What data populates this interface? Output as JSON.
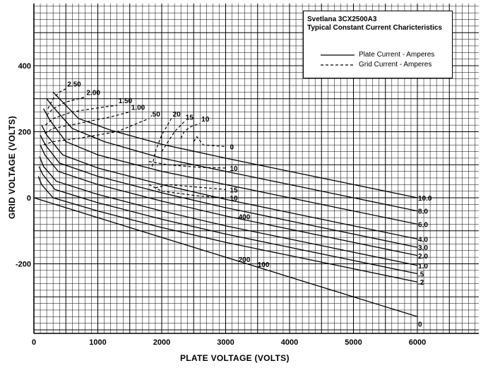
{
  "chart_data": {
    "type": "line",
    "title": "Svetlana 3CX2500A3",
    "subtitle": "Typical Constant Current Charicteristics",
    "xlabel": "PLATE VOLTAGE (VOLTS)",
    "ylabel": "GRID VOLTAGE (VOLTS)",
    "xlim": [
      0,
      7100
    ],
    "ylim": [
      -410,
      590
    ],
    "x_ticks": [
      "0",
      "1000",
      "2000",
      "3000",
      "4000",
      "5000",
      "6000"
    ],
    "y_ticks": [
      "400",
      "200",
      "0",
      "-200"
    ],
    "grid": true,
    "legend": {
      "position": "top-right",
      "entries": [
        {
          "label": "Plate Current - Amperes",
          "style": "solid"
        },
        {
          "label": "Grid Current - Amperes",
          "style": "dashed"
        }
      ]
    },
    "plate_current_series": [
      {
        "name": "10.0",
        "x": [
          300,
          400,
          700,
          1200,
          2000,
          3000,
          4000,
          5000,
          6000
        ],
        "y": [
          320,
          300,
          240,
          205,
          162,
          120,
          80,
          40,
          0
        ]
      },
      {
        "name": "8.0",
        "x": [
          200,
          300,
          600,
          1100,
          2000,
          3000,
          4000,
          5000,
          6000
        ],
        "y": [
          300,
          275,
          210,
          170,
          120,
          80,
          40,
          0,
          -40
        ]
      },
      {
        "name": "6.0",
        "x": [
          150,
          250,
          500,
          1000,
          2000,
          3000,
          4000,
          5000,
          6000
        ],
        "y": [
          270,
          235,
          170,
          130,
          80,
          40,
          0,
          -40,
          -80
        ]
      },
      {
        "name": "4.0",
        "x": [
          120,
          200,
          450,
          1000,
          2000,
          3000,
          4000,
          5000,
          6000
        ],
        "y": [
          220,
          190,
          130,
          90,
          40,
          -5,
          -45,
          -85,
          -125
        ]
      },
      {
        "name": "3.0",
        "x": [
          100,
          180,
          400,
          1000,
          2000,
          3000,
          4000,
          5000,
          6000
        ],
        "y": [
          190,
          160,
          105,
          65,
          15,
          -30,
          -70,
          -110,
          -150
        ]
      },
      {
        "name": "2.0",
        "x": [
          100,
          170,
          380,
          1000,
          2000,
          3000,
          4000,
          5000,
          6000
        ],
        "y": [
          160,
          130,
          80,
          40,
          -10,
          -55,
          -95,
          -135,
          -175
        ]
      },
      {
        "name": "1.0",
        "x": [
          90,
          150,
          350,
          1000,
          2000,
          3000,
          4000,
          5000,
          6000
        ],
        "y": [
          125,
          95,
          50,
          10,
          -40,
          -85,
          -125,
          -165,
          -205
        ]
      },
      {
        "name": ".5",
        "x": [
          80,
          140,
          330,
          1000,
          2000,
          3000,
          4000,
          5000,
          6000
        ],
        "y": [
          95,
          70,
          25,
          -15,
          -65,
          -110,
          -150,
          -190,
          -230
        ]
      },
      {
        "name": ".2",
        "x": [
          70,
          120,
          300,
          1000,
          2000,
          3000,
          4000,
          5000,
          6000
        ],
        "y": [
          65,
          40,
          0,
          -40,
          -90,
          -135,
          -175,
          -215,
          -255
        ]
      },
      {
        "name": "0",
        "x": [
          0,
          1000,
          2000,
          3000,
          4000,
          5000,
          6000
        ],
        "y": [
          0,
          -60,
          -120,
          -180,
          -240,
          -300,
          -360
        ]
      }
    ],
    "grid_current_series": [
      {
        "name": "2.50",
        "x": [
          220,
          300,
          400,
          500
        ],
        "y": [
          270,
          300,
          320,
          330
        ]
      },
      {
        "name": "2.00",
        "x": [
          200,
          300,
          500,
          800
        ],
        "y": [
          250,
          270,
          290,
          305
        ]
      },
      {
        "name": "1.50",
        "x": [
          180,
          300,
          600,
          1100,
          1300
        ],
        "y": [
          220,
          240,
          260,
          275,
          280
        ]
      },
      {
        "name": "1.00",
        "x": [
          170,
          300,
          700,
          1200,
          1500
        ],
        "y": [
          195,
          210,
          225,
          245,
          260
        ]
      },
      {
        "name": ".50",
        "x": [
          150,
          300,
          700,
          1300,
          1800
        ],
        "y": [
          160,
          170,
          180,
          200,
          240
        ]
      },
      {
        "name": "20",
        "x": [
          1850,
          1900,
          2000,
          2150
        ],
        "y": [
          95,
          140,
          190,
          240
        ]
      },
      {
        "name": "15",
        "x": [
          2000,
          2100,
          2200,
          2350
        ],
        "y": [
          140,
          170,
          200,
          230
        ]
      },
      {
        "name": "10",
        "x": [
          2300,
          2350,
          2450,
          2600
        ],
        "y": [
          180,
          200,
          215,
          225
        ]
      },
      {
        "name": "0",
        "x": [
          2500,
          2550,
          2650,
          3000
        ],
        "y": [
          170,
          185,
          160,
          155
        ]
      },
      {
        "name": "10 (right)",
        "x": [
          1800,
          2100,
          2600,
          3000
        ],
        "y": [
          110,
          100,
          92,
          90
        ]
      },
      {
        "name": "15 (right)",
        "x": [
          1900,
          2100,
          2700,
          3000
        ],
        "y": [
          30,
          40,
          30,
          25
        ]
      },
      {
        "name": "10 (low)",
        "x": [
          1800,
          2000,
          2600,
          3000
        ],
        "y": [
          40,
          20,
          5,
          0
        ]
      }
    ],
    "annotations": [
      "400",
      "200",
      "100"
    ]
  }
}
